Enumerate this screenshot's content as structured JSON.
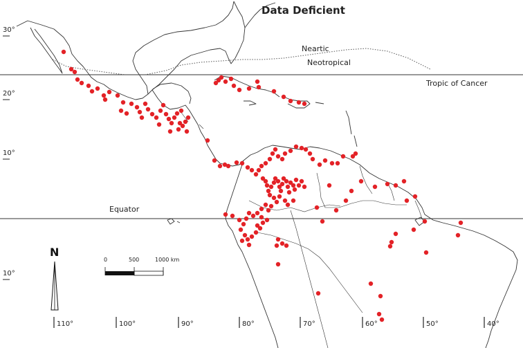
{
  "title": "Data Deficient",
  "lines": {
    "nearctic": "Neartic",
    "neotropical": "Neotropical",
    "tropic_of_cancer": "Tropic of Cancer",
    "equator": "Equator"
  },
  "latitude_labels": [
    "30°",
    "20°",
    "10°",
    "10°"
  ],
  "longitude_labels": [
    "110°",
    "100°",
    "90°",
    "80°",
    "70°",
    "60°",
    "50°",
    "40°"
  ],
  "north_arrow": "N",
  "scale_bar": {
    "ticks": [
      "0",
      "500",
      "1000 km"
    ]
  },
  "colors": {
    "occurrence": "#e32227",
    "land_outline": "#333333"
  },
  "occurrences": [
    [
      92,
      75
    ],
    [
      103,
      100
    ],
    [
      108,
      104
    ],
    [
      112,
      115
    ],
    [
      118,
      120
    ],
    [
      128,
      124
    ],
    [
      133,
      132
    ],
    [
      141,
      128
    ],
    [
      150,
      138
    ],
    [
      152,
      144
    ],
    [
      158,
      133
    ],
    [
      170,
      138
    ],
    [
      178,
      148
    ],
    [
      175,
      160
    ],
    [
      183,
      164
    ],
    [
      190,
      150
    ],
    [
      198,
      155
    ],
    [
      202,
      162
    ],
    [
      205,
      170
    ],
    [
      210,
      150
    ],
    [
      214,
      158
    ],
    [
      220,
      165
    ],
    [
      226,
      170
    ],
    [
      232,
      160
    ],
    [
      236,
      152
    ],
    [
      240,
      165
    ],
    [
      244,
      172
    ],
    [
      248,
      178
    ],
    [
      252,
      170
    ],
    [
      256,
      164
    ],
    [
      260,
      178
    ],
    [
      264,
      182
    ],
    [
      268,
      176
    ],
    [
      272,
      170
    ],
    [
      258,
      187
    ],
    [
      270,
      190
    ],
    [
      262,
      160
    ],
    [
      246,
      190
    ],
    [
      230,
      180
    ],
    [
      300,
      203
    ],
    [
      310,
      232
    ],
    [
      318,
      240
    ],
    [
      325,
      238
    ],
    [
      330,
      240
    ],
    [
      342,
      235
    ],
    [
      350,
      236
    ],
    [
      358,
      242
    ],
    [
      364,
      246
    ],
    [
      370,
      252
    ],
    [
      374,
      246
    ],
    [
      378,
      240
    ],
    [
      384,
      236
    ],
    [
      390,
      230
    ],
    [
      394,
      222
    ],
    [
      398,
      216
    ],
    [
      402,
      226
    ],
    [
      408,
      230
    ],
    [
      412,
      222
    ],
    [
      420,
      218
    ],
    [
      428,
      212
    ],
    [
      436,
      214
    ],
    [
      442,
      216
    ],
    [
      448,
      222
    ],
    [
      452,
      230
    ],
    [
      462,
      238
    ],
    [
      470,
      232
    ],
    [
      480,
      236
    ],
    [
      488,
      236
    ],
    [
      496,
      226
    ],
    [
      510,
      226
    ],
    [
      514,
      222
    ],
    [
      380,
      258
    ],
    [
      384,
      262
    ],
    [
      386,
      268
    ],
    [
      388,
      276
    ],
    [
      390,
      282
    ],
    [
      392,
      270
    ],
    [
      396,
      264
    ],
    [
      398,
      258
    ],
    [
      402,
      262
    ],
    [
      404,
      270
    ],
    [
      406,
      276
    ],
    [
      408,
      266
    ],
    [
      410,
      258
    ],
    [
      414,
      262
    ],
    [
      416,
      270
    ],
    [
      418,
      278
    ],
    [
      420,
      264
    ],
    [
      424,
      268
    ],
    [
      426,
      274
    ],
    [
      428,
      260
    ],
    [
      432,
      268
    ],
    [
      436,
      262
    ],
    [
      440,
      270
    ],
    [
      396,
      286
    ],
    [
      400,
      292
    ],
    [
      404,
      284
    ],
    [
      412,
      290
    ],
    [
      416,
      296
    ],
    [
      392,
      298
    ],
    [
      388,
      304
    ],
    [
      384,
      296
    ],
    [
      378,
      302
    ],
    [
      372,
      308
    ],
    [
      366,
      312
    ],
    [
      360,
      308
    ],
    [
      356,
      316
    ],
    [
      352,
      324
    ],
    [
      348,
      332
    ],
    [
      354,
      340
    ],
    [
      358,
      346
    ],
    [
      364,
      342
    ],
    [
      370,
      336
    ],
    [
      376,
      330
    ],
    [
      380,
      322
    ],
    [
      378,
      314
    ],
    [
      386,
      318
    ],
    [
      360,
      354
    ],
    [
      350,
      348
    ],
    [
      372,
      326
    ],
    [
      326,
      310
    ],
    [
      336,
      312
    ],
    [
      346,
      318
    ],
    [
      402,
      346
    ],
    [
      408,
      352
    ],
    [
      400,
      355
    ],
    [
      402,
      382
    ],
    [
      414,
      355
    ],
    [
      424,
      290
    ],
    [
      458,
      300
    ],
    [
      466,
      320
    ],
    [
      486,
      304
    ],
    [
      500,
      290
    ],
    [
      476,
      268
    ],
    [
      508,
      276
    ],
    [
      522,
      262
    ],
    [
      542,
      270
    ],
    [
      560,
      266
    ],
    [
      572,
      268
    ],
    [
      588,
      290
    ],
    [
      584,
      262
    ],
    [
      600,
      284
    ],
    [
      614,
      320
    ],
    [
      598,
      332
    ],
    [
      572,
      338
    ],
    [
      566,
      350
    ],
    [
      564,
      356
    ],
    [
      616,
      365
    ],
    [
      666,
      322
    ],
    [
      662,
      340
    ],
    [
      536,
      410
    ],
    [
      460,
      424
    ],
    [
      550,
      428
    ],
    [
      548,
      454
    ],
    [
      552,
      462
    ],
    [
      316,
      116
    ],
    [
      320,
      112
    ],
    [
      326,
      118
    ],
    [
      334,
      114
    ],
    [
      338,
      124
    ],
    [
      346,
      130
    ],
    [
      360,
      128
    ],
    [
      374,
      126
    ],
    [
      396,
      132
    ],
    [
      410,
      140
    ],
    [
      420,
      146
    ],
    [
      432,
      148
    ],
    [
      440,
      150
    ],
    [
      312,
      120
    ],
    [
      372,
      118
    ]
  ]
}
